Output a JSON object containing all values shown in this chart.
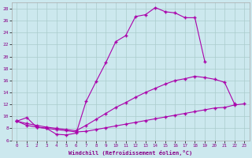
{
  "xlabel": "Windchill (Refroidissement éolien,°C)",
  "bg_color": "#cce8ee",
  "line_color": "#aa00aa",
  "grid_color": "#aacccc",
  "xlim": [
    -0.5,
    23.5
  ],
  "ylim": [
    6,
    29
  ],
  "xticks": [
    0,
    1,
    2,
    3,
    4,
    5,
    6,
    7,
    8,
    9,
    10,
    11,
    12,
    13,
    14,
    15,
    16,
    17,
    18,
    19,
    20,
    21,
    22,
    23
  ],
  "yticks": [
    6,
    8,
    10,
    12,
    14,
    16,
    18,
    20,
    22,
    24,
    26,
    28
  ],
  "line1_x": [
    0,
    1,
    2,
    3,
    4,
    5,
    6,
    7,
    8,
    9,
    10,
    11,
    12,
    13,
    14,
    15,
    16,
    17,
    18,
    19
  ],
  "line1_y": [
    9.2,
    9.8,
    8.2,
    8.0,
    7.0,
    6.9,
    7.2,
    12.5,
    15.8,
    19.0,
    22.5,
    23.5,
    26.7,
    27.0,
    28.2,
    27.5,
    27.3,
    26.5,
    26.5,
    19.2
  ],
  "line2_x": [
    0,
    1,
    2,
    3,
    4,
    5,
    6,
    7,
    8,
    9,
    10,
    11,
    12,
    13,
    14,
    15,
    16,
    17,
    18,
    19,
    20,
    21,
    22
  ],
  "line2_y": [
    9.2,
    8.8,
    8.5,
    8.2,
    8.0,
    7.8,
    7.6,
    8.5,
    9.5,
    10.5,
    11.5,
    12.3,
    13.2,
    14.0,
    14.7,
    15.4,
    16.0,
    16.3,
    16.7,
    16.5,
    16.2,
    15.7,
    12.1
  ],
  "line3_x": [
    0,
    1,
    2,
    3,
    4,
    5,
    6,
    7,
    8,
    9,
    10,
    11,
    12,
    13,
    14,
    15,
    16,
    17,
    18,
    19,
    20,
    21,
    22,
    23
  ],
  "line3_y": [
    9.2,
    8.5,
    8.2,
    8.0,
    7.8,
    7.6,
    7.4,
    7.5,
    7.8,
    8.1,
    8.4,
    8.7,
    9.0,
    9.3,
    9.6,
    9.9,
    10.2,
    10.5,
    10.8,
    11.1,
    11.4,
    11.5,
    11.9,
    12.1
  ]
}
